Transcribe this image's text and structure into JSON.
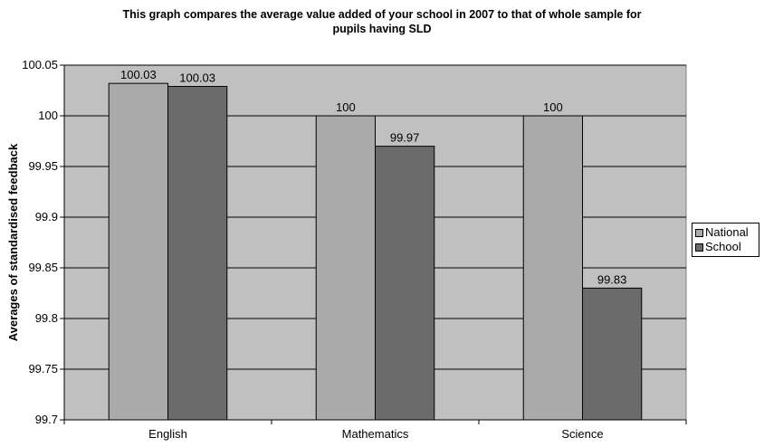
{
  "chart_data": {
    "type": "bar",
    "title_lines": [
      "This graph compares the average value added of your school in 2007 to that of whole sample for",
      "pupils having SLD"
    ],
    "xlabel": "",
    "ylabel": "Averages of standardised feedback",
    "categories": [
      "English",
      "Mathematics",
      "Science"
    ],
    "series": [
      {
        "name": "National",
        "values": [
          100.032,
          100.0,
          100.0
        ],
        "labels": [
          "100.03",
          "100",
          "100"
        ],
        "color": "#aaaaaa"
      },
      {
        "name": "School",
        "values": [
          100.029,
          99.97,
          99.83
        ],
        "labels": [
          "100.03",
          "99.97",
          "99.83"
        ],
        "color": "#6b6b6b"
      }
    ],
    "ylim": [
      99.7,
      100.05
    ],
    "yticks": [
      "99.7",
      "99.75",
      "99.8",
      "99.85",
      "99.9",
      "99.95",
      "100",
      "100.05"
    ],
    "grid": true,
    "legend_position": "right",
    "plot_background": "#c0c0c0"
  }
}
